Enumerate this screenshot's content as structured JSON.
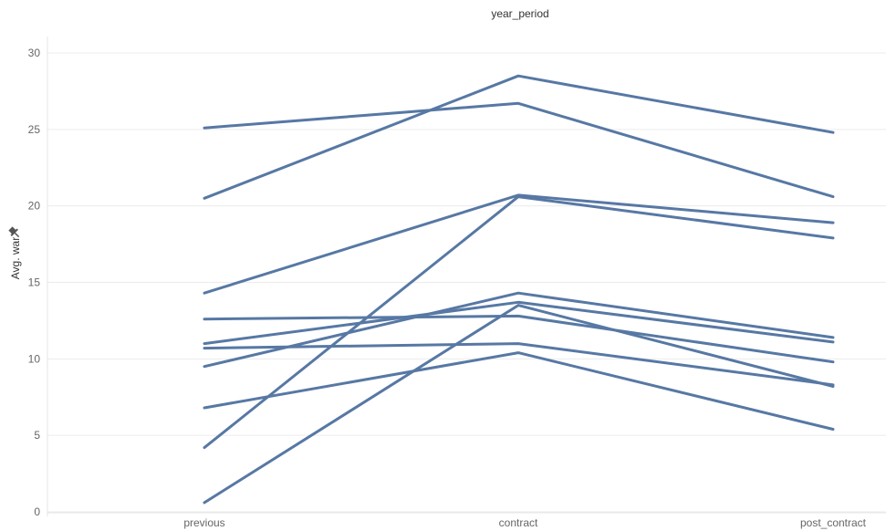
{
  "chart_data": {
    "type": "line",
    "title": "year_period",
    "xlabel": "",
    "ylabel": "Avg. war",
    "categories": [
      "previous",
      "contract",
      "post_contract"
    ],
    "ylim": [
      0,
      30
    ],
    "yticks": [
      0,
      5,
      10,
      15,
      20,
      25,
      30
    ],
    "grid": true,
    "legend": "none",
    "line_color": "#5778a4",
    "series": [
      {
        "values": [
          25.1,
          26.7,
          20.6
        ]
      },
      {
        "values": [
          20.5,
          28.5,
          24.8
        ]
      },
      {
        "values": [
          14.3,
          20.7,
          18.9
        ]
      },
      {
        "values": [
          12.6,
          12.8,
          9.8
        ]
      },
      {
        "values": [
          11.0,
          13.7,
          11.1
        ]
      },
      {
        "values": [
          10.7,
          11.0,
          8.3
        ]
      },
      {
        "values": [
          9.5,
          14.3,
          11.4
        ]
      },
      {
        "values": [
          6.8,
          10.4,
          5.4
        ]
      },
      {
        "values": [
          4.2,
          20.6,
          17.9
        ]
      },
      {
        "values": [
          0.6,
          13.5,
          8.2
        ]
      }
    ]
  }
}
